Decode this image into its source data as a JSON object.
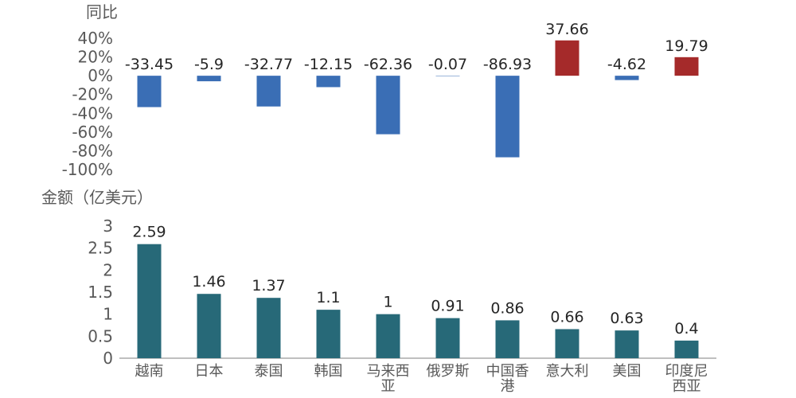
{
  "chart_data": [
    {
      "type": "bar",
      "ylabel": "同比",
      "categories": [
        "越南",
        "日本",
        "泰国",
        "韩国",
        "马来西亚",
        "俄罗斯",
        "中国香港",
        "意大利",
        "美国",
        "印度尼西亚"
      ],
      "values": [
        -33.45,
        -5.9,
        -32.77,
        -12.15,
        -62.36,
        -0.07,
        -86.93,
        37.66,
        -4.62,
        19.79
      ],
      "data_labels": [
        "-33.45",
        "-5.9",
        "-32.77",
        "-12.15",
        "-62.36",
        "-0.07",
        "-86.93",
        "37.66",
        "-4.62",
        "19.79"
      ],
      "ylim": [
        -100,
        40
      ],
      "y_ticks": [
        40,
        20,
        0,
        -20,
        -40,
        -60,
        -80,
        -100
      ],
      "y_tick_labels": [
        "40%",
        "20%",
        "0%",
        "-20%",
        "-40%",
        "-60%",
        "-80%",
        "-100%"
      ],
      "colors": {
        "positive": "#a52a2a",
        "negative": "#3a6eb5"
      },
      "grid": false
    },
    {
      "type": "bar",
      "ylabel": "金额（亿美元）",
      "categories": [
        "越南",
        "日本",
        "泰国",
        "韩国",
        "马来西亚",
        "俄罗斯",
        "中国香港",
        "意大利",
        "美国",
        "印度尼西亚"
      ],
      "category_lines": [
        [
          "越南"
        ],
        [
          "日本"
        ],
        [
          "泰国"
        ],
        [
          "韩国"
        ],
        [
          "马来西",
          "亚"
        ],
        [
          "俄罗斯"
        ],
        [
          "中国香",
          "港"
        ],
        [
          "意大利"
        ],
        [
          "美国"
        ],
        [
          "印度尼",
          "西亚"
        ]
      ],
      "values": [
        2.59,
        1.46,
        1.37,
        1.1,
        1,
        0.91,
        0.86,
        0.66,
        0.63,
        0.4
      ],
      "data_labels": [
        "2.59",
        "1.46",
        "1.37",
        "1.1",
        "1",
        "0.91",
        "0.86",
        "0.66",
        "0.63",
        "0.4"
      ],
      "ylim": [
        0,
        3
      ],
      "y_ticks": [
        3,
        2.5,
        2,
        1.5,
        1,
        0.5,
        0
      ],
      "y_tick_labels": [
        "3",
        "2.5",
        "2",
        "1.5",
        "1",
        "0.5",
        "0"
      ],
      "colors": {
        "bar": "#276978"
      },
      "grid": false
    }
  ]
}
